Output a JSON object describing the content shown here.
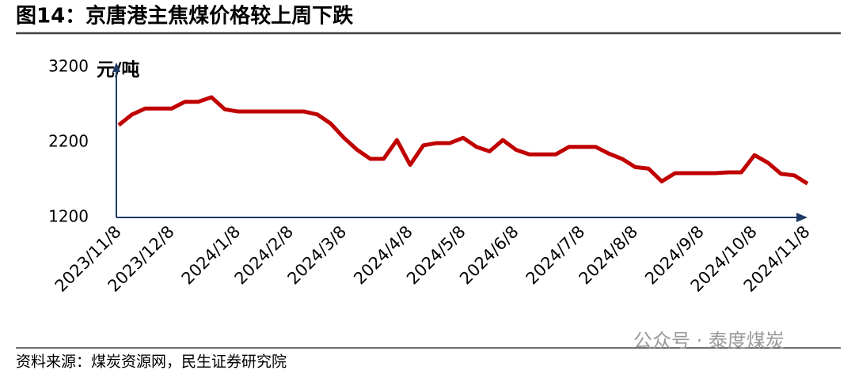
{
  "chart_data": {
    "type": "line",
    "title": "图14：京唐港主焦煤价格较上周下跌",
    "y_label": "元/吨",
    "source": "资料来源：煤炭资源网，民生证券研究院",
    "watermark": "公众号 · 泰度煤炭",
    "categories": [
      "2023/11/8",
      null,
      null,
      null,
      "2023/12/8",
      null,
      null,
      null,
      null,
      "2024/1/8",
      null,
      null,
      null,
      "2024/2/8",
      null,
      null,
      null,
      "2024/3/8",
      null,
      null,
      null,
      null,
      "2024/4/8",
      null,
      null,
      null,
      "2024/5/8",
      null,
      null,
      null,
      "2024/6/8",
      null,
      null,
      null,
      null,
      "2024/7/8",
      null,
      null,
      null,
      "2024/8/8",
      null,
      null,
      null,
      null,
      "2024/9/8",
      null,
      null,
      null,
      "2024/10/8",
      null,
      null,
      null,
      "2024/11/8"
    ],
    "series": [
      {
        "name": "京唐港主焦煤价格",
        "color": "#c00000",
        "values": [
          2430,
          2570,
          2650,
          2650,
          2650,
          2740,
          2740,
          2800,
          2640,
          2610,
          2610,
          2610,
          2610,
          2610,
          2610,
          2570,
          2450,
          2260,
          2100,
          1980,
          1980,
          2230,
          1900,
          2160,
          2190,
          2190,
          2260,
          2140,
          2080,
          2230,
          2100,
          2040,
          2040,
          2040,
          2140,
          2140,
          2140,
          2050,
          1980,
          1870,
          1850,
          1680,
          1790,
          1790,
          1790,
          1790,
          1800,
          1800,
          2030,
          1930,
          1780,
          1760,
          1650
        ]
      }
    ],
    "ylim": [
      1200,
      3200
    ],
    "yticks": [
      1200,
      2200,
      3200
    ]
  }
}
